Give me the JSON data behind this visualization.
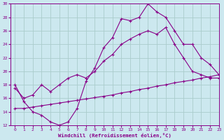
{
  "xlabel": "Windchill (Refroidissement éolien,°C)",
  "xlim": [
    -0.5,
    23
  ],
  "ylim": [
    12,
    30
  ],
  "xticks": [
    0,
    1,
    2,
    3,
    4,
    5,
    6,
    7,
    8,
    9,
    10,
    11,
    12,
    13,
    14,
    15,
    16,
    17,
    18,
    19,
    20,
    21,
    22,
    23
  ],
  "yticks": [
    12,
    14,
    16,
    18,
    20,
    22,
    24,
    26,
    28,
    30
  ],
  "bg_color": "#cce8ef",
  "line_color": "#880088",
  "grid_color": "#aacccc",
  "line1_x": [
    0,
    1,
    2,
    3,
    4,
    5,
    6,
    7,
    8,
    9,
    10,
    11,
    12,
    13,
    14,
    15,
    16,
    17,
    18,
    19,
    20,
    21,
    22,
    23
  ],
  "line1_y": [
    18.0,
    15.5,
    14.0,
    13.5,
    12.5,
    12.0,
    12.5,
    14.5,
    18.5,
    20.5,
    23.5,
    25.0,
    27.8,
    27.5,
    28.0,
    30.0,
    28.8,
    28.0,
    26.0,
    24.0,
    24.0,
    22.0,
    21.0,
    19.5
  ],
  "line2_x": [
    0,
    1,
    2,
    3,
    4,
    5,
    6,
    7,
    8,
    9,
    10,
    11,
    12,
    13,
    14,
    15,
    16,
    17,
    18,
    19,
    20,
    21,
    22,
    23
  ],
  "line2_y": [
    17.5,
    16.0,
    16.5,
    18.0,
    17.0,
    18.0,
    19.0,
    19.5,
    19.0,
    20.0,
    21.5,
    22.5,
    24.0,
    24.8,
    25.5,
    26.0,
    25.5,
    26.5,
    24.0,
    22.0,
    20.0,
    19.5,
    19.0,
    19.0
  ],
  "line3_x": [
    0,
    1,
    2,
    3,
    4,
    5,
    6,
    7,
    8,
    9,
    10,
    11,
    12,
    13,
    14,
    15,
    16,
    17,
    18,
    19,
    20,
    21,
    22,
    23
  ],
  "line3_y": [
    14.5,
    14.5,
    14.7,
    14.9,
    15.1,
    15.3,
    15.5,
    15.7,
    15.9,
    16.1,
    16.3,
    16.5,
    16.8,
    17.0,
    17.3,
    17.5,
    17.8,
    18.0,
    18.3,
    18.5,
    18.7,
    19.0,
    19.2,
    19.5
  ]
}
